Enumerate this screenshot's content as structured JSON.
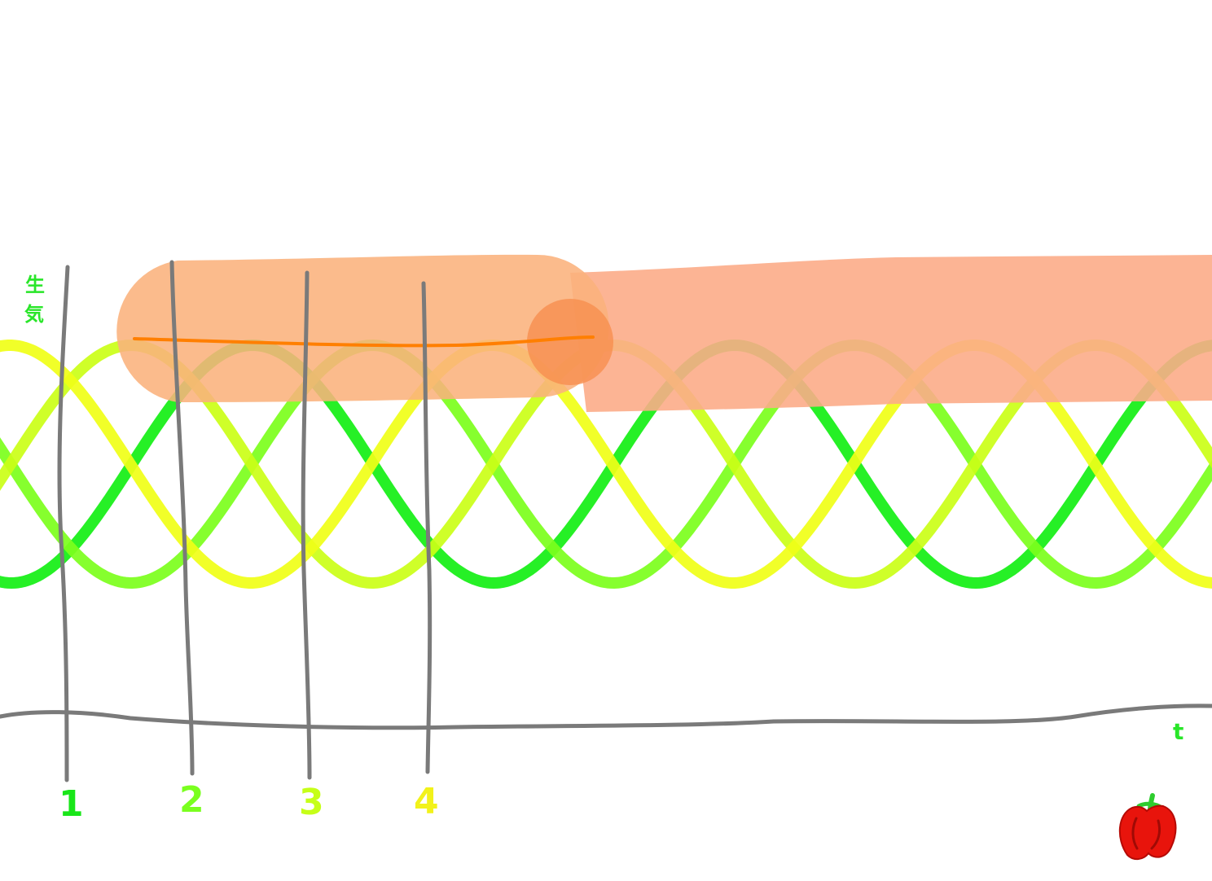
{
  "y_axis_label_line1": "生",
  "y_axis_label_line2": "気",
  "x_axis_label": "t",
  "markers": [
    {
      "label": "1",
      "color": "#19e619"
    },
    {
      "label": "2",
      "color": "#7aff1f"
    },
    {
      "label": "3",
      "color": "#c6ff18"
    },
    {
      "label": "4",
      "color": "#f2f21a"
    }
  ],
  "wave_colors": [
    "#14ef14",
    "#7cff1c",
    "#cbff17",
    "#f0ff17"
  ],
  "band_colors": {
    "left_capsule": "#fbb27c",
    "right_band": "#fcac88",
    "overlap_circle": "#f78f4f",
    "center_line": "#ff7f00"
  },
  "axis_color": "#7a7a7a",
  "label_color": "#29e629",
  "pepper_icon": "red-bell-pepper-icon"
}
